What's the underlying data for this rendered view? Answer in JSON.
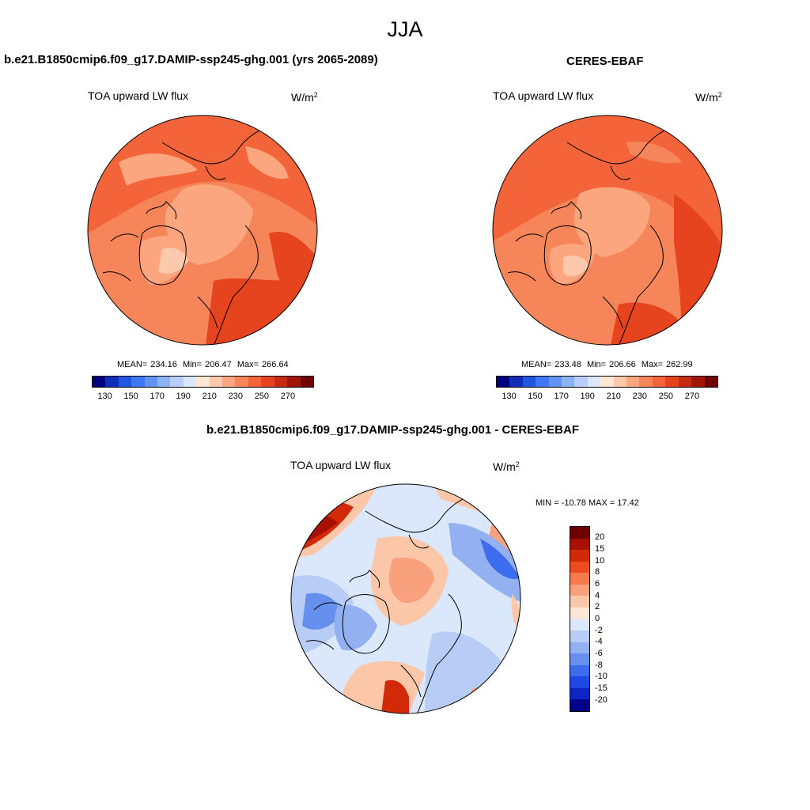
{
  "main_title": "JJA",
  "colors": {
    "abs_scale": [
      "#00007f",
      "#0f2fb8",
      "#2156e0",
      "#3d78f0",
      "#6193f2",
      "#8db3f5",
      "#b7cffa",
      "#dce7fb",
      "#ffe5d4",
      "#fcc9ac",
      "#fba67f",
      "#f7855a",
      "#f3643a",
      "#e6431f",
      "#c72a12",
      "#9f1508",
      "#700300"
    ],
    "diff_scale": [
      "#6e0200",
      "#a81004",
      "#d22a08",
      "#ee4b1d",
      "#f57a4c",
      "#f9a07c",
      "#fcc6a9",
      "#fde6d8",
      "#dbe7fb",
      "#b8cdf6",
      "#93b0f1",
      "#6690ee",
      "#3d6cec",
      "#1f48e6",
      "#0d25c4",
      "#02038a"
    ],
    "coast": "#000000"
  },
  "panels": {
    "model": {
      "title": "b.e21.B1850cmip6.f09_g17.DAMIP-ssp245-ghg.001 (yrs 2065-2089)",
      "variable": "TOA upward LW flux",
      "units_base": "W/m",
      "units_exp": "2",
      "stats": {
        "mean_label": "MEAN=",
        "mean": "234.16",
        "min_label": "Min=",
        "min": "206.47",
        "max_label": "Max=",
        "max": "266.64"
      }
    },
    "obs": {
      "title": "CERES-EBAF",
      "variable": "TOA upward LW flux",
      "units_base": "W/m",
      "units_exp": "2",
      "stats": {
        "mean_label": "MEAN=",
        "mean": "233.48",
        "min_label": "Min=",
        "min": "206.66",
        "max_label": "Max=",
        "max": "262.99"
      }
    },
    "diff": {
      "title": "b.e21.B1850cmip6.f09_g17.DAMIP-ssp245-ghg.001 - CERES-EBAF",
      "variable": "TOA upward LW flux",
      "units_base": "W/m",
      "units_exp": "2",
      "minmax": "MIN = -10.78 MAX =  17.42"
    }
  },
  "abs_colorbar_ticks": [
    "130",
    "150",
    "170",
    "190",
    "210",
    "230",
    "250",
    "270"
  ],
  "diff_colorbar_ticks": [
    "20",
    "15",
    "10",
    "8",
    "6",
    "4",
    "2",
    "0",
    "-2",
    "-4",
    "-6",
    "-8",
    "-10",
    "-15",
    "-20"
  ]
}
